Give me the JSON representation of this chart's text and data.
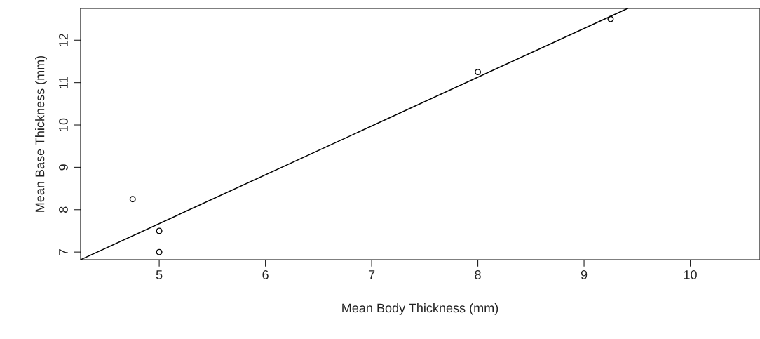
{
  "chart_data": {
    "type": "scatter",
    "xlabel": "Mean Body Thickness (mm)",
    "ylabel": "Mean Base Thickness (mm)",
    "xlim": [
      4.26,
      10.65
    ],
    "ylim": [
      6.82,
      12.75
    ],
    "xticks": [
      5,
      6,
      7,
      8,
      9,
      10
    ],
    "yticks": [
      7,
      8,
      9,
      10,
      11,
      12
    ],
    "grid": false,
    "legend": false,
    "series": [
      {
        "color": "#000000",
        "marker": "circle",
        "x": [
          4.75,
          5,
          5,
          8,
          9.25
        ],
        "values": [
          8.25,
          7.5,
          7,
          11.25,
          12.5
        ]
      },
      {
        "type": "line",
        "color": "#000000",
        "line_style": "solid",
        "marker": "none",
        "x": [
          4.26,
          9.41
        ],
        "values": [
          6.82,
          12.75
        ]
      }
    ]
  }
}
